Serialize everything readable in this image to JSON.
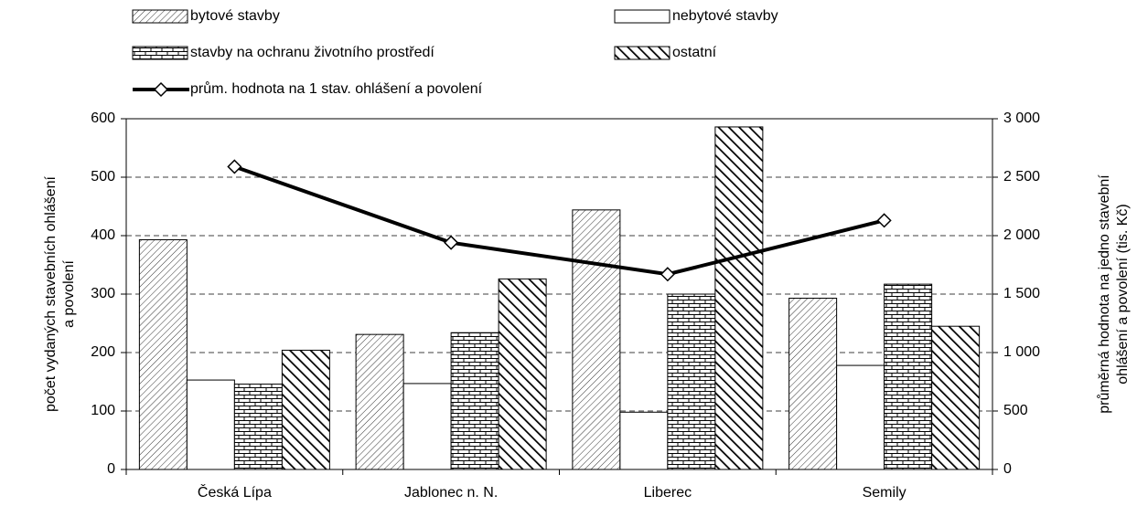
{
  "chart_data": {
    "type": "bar",
    "categories": [
      "Česká Lípa",
      "Jablonec n. N.",
      "Liberec",
      "Semily"
    ],
    "series": [
      {
        "name": "bytové stavby",
        "pattern": "hatch",
        "values": [
          393,
          231,
          444,
          293
        ]
      },
      {
        "name": "nebytové stavby",
        "pattern": "none",
        "values": [
          153,
          147,
          98,
          178
        ]
      },
      {
        "name": "stavby na ochranu životního prostředí",
        "pattern": "brick",
        "values": [
          146,
          234,
          300,
          317
        ]
      },
      {
        "name": "ostatní",
        "pattern": "thick",
        "values": [
          204,
          326,
          586,
          245
        ]
      },
      {
        "name": "prům. hodnota na 1 stav. ohlášení a povolení",
        "type": "line",
        "axis": "y2",
        "color": "#000000",
        "values": [
          2590,
          1940,
          1670,
          2130
        ]
      }
    ],
    "ylabel": [
      "počet vydaných stavebních ohlášení",
      "a povolení"
    ],
    "y2label": [
      "průměrná hodnota na jedno stavební",
      "ohlášení a povolení (tis. Kč)"
    ],
    "ylim": [
      0,
      600
    ],
    "yticks": [
      0,
      100,
      200,
      300,
      400,
      500,
      600
    ],
    "y2lim": [
      0,
      3000
    ],
    "y2ticks": [
      0,
      500,
      {
        "value": 1000,
        "label": "1 000"
      },
      {
        "value": 1500,
        "label": "1 500"
      },
      {
        "value": 2000,
        "label": "2 000"
      },
      {
        "value": 2500,
        "label": "2 500"
      },
      {
        "value": 3000,
        "label": "3 000"
      }
    ],
    "grid": true,
    "legend": "top"
  }
}
